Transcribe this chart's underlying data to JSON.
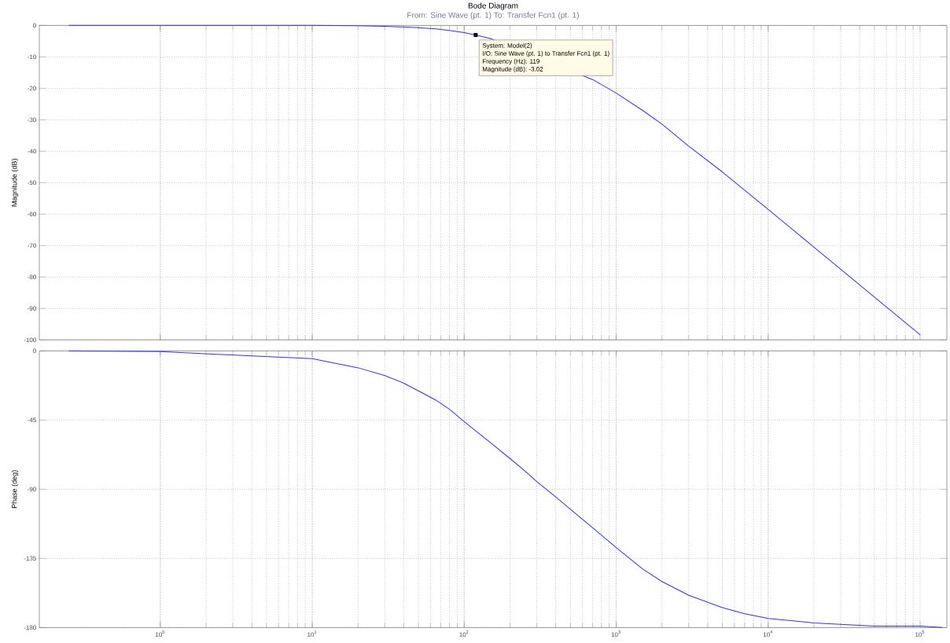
{
  "chart_data": [
    {
      "type": "line",
      "title": "Bode Diagram",
      "subtitle": "From: Sine Wave (pt. 1)  To: Transfer Fcn1 (pt. 1)",
      "ylabel": "Magnitude (dB)",
      "x": [
        0.25,
        1,
        10,
        20,
        30,
        40,
        50,
        65,
        80,
        100,
        119,
        150,
        200,
        250,
        300,
        400,
        500,
        700,
        1000,
        1500,
        2000,
        3000,
        5000,
        7000,
        10000,
        20000,
        50000,
        100000
      ],
      "series": [
        {
          "color": "#3030ff",
          "values": [
            0,
            0,
            0,
            -0.1,
            -0.3,
            -0.5,
            -0.7,
            -1.1,
            -1.6,
            -2.3,
            -3.02,
            -4.2,
            null,
            null,
            null,
            null,
            null,
            -17.2,
            -21.5,
            -27.1,
            -31.4,
            -38.4,
            -46.6,
            -52.4,
            -58.5,
            -70.5,
            -86.4,
            -98.4
          ]
        }
      ],
      "annotations": [
        {
          "text": "System: Model(2)",
          "x": 119,
          "y": -3.02
        },
        "I/O: Sine Wave (pt. 1) to Transfer Fcn1 (pt. 1)",
        "Frequency (Hz): 119",
        "Magnitude (dB): -3.02"
      ],
      "log": "x",
      "grid": true,
      "tick_labels": "y",
      "marker": "none",
      "line_style": "solid",
      "xlim": [
        0.16,
        150000
      ],
      "xticks": [
        {
          "value": 1,
          "label": null
        },
        {
          "value": 10,
          "label": null
        },
        {
          "value": 100,
          "label": null
        },
        {
          "value": 1000,
          "label": null
        },
        {
          "value": 10000,
          "label": null
        },
        {
          "value": 100000,
          "label": null
        }
      ],
      "ylim": [
        -100,
        0
      ],
      "yticks": [
        0,
        -10,
        -20,
        -30,
        -40,
        -50,
        -60,
        -70,
        -80,
        -90,
        -100
      ]
    },
    {
      "type": "line",
      "ylabel": "Phase (deg)",
      "x": [
        0.25,
        1,
        10,
        20,
        30,
        40,
        50,
        65,
        80,
        100,
        119,
        150,
        200,
        250,
        300,
        400,
        500,
        700,
        1000,
        1500,
        2000,
        3000,
        5000,
        7000,
        10000,
        20000,
        50000,
        100000,
        140000
      ],
      "series": [
        {
          "color": "#3030ff",
          "values": [
            -0.1,
            -0.5,
            -5,
            -11,
            -16,
            -21,
            -26,
            -32,
            -38,
            -46,
            -52,
            -60,
            -70,
            -78,
            -85,
            -95,
            -103,
            -115,
            -128,
            -142,
            -150,
            -159,
            -167,
            -171,
            -174,
            -177,
            -179,
            -179,
            -180
          ]
        }
      ],
      "log": "x",
      "grid": true,
      "marker": "none",
      "line_style": "solid",
      "xlim": [
        0.16,
        150000
      ],
      "xticks": [
        {
          "value": 1,
          "label": "10$^{0}$"
        },
        {
          "value": 10,
          "label": "10$^{1}$"
        },
        {
          "value": 100,
          "label": "10$^{2}$"
        },
        {
          "value": 1000,
          "label": "10$^{3}$"
        },
        {
          "value": 10000,
          "label": "10$^{4}$"
        },
        {
          "value": 100000,
          "label": "10$^{5}$"
        }
      ],
      "ylim": [
        -180,
        0
      ],
      "yticks": [
        0,
        -45,
        -90,
        -135,
        -180
      ]
    }
  ]
}
